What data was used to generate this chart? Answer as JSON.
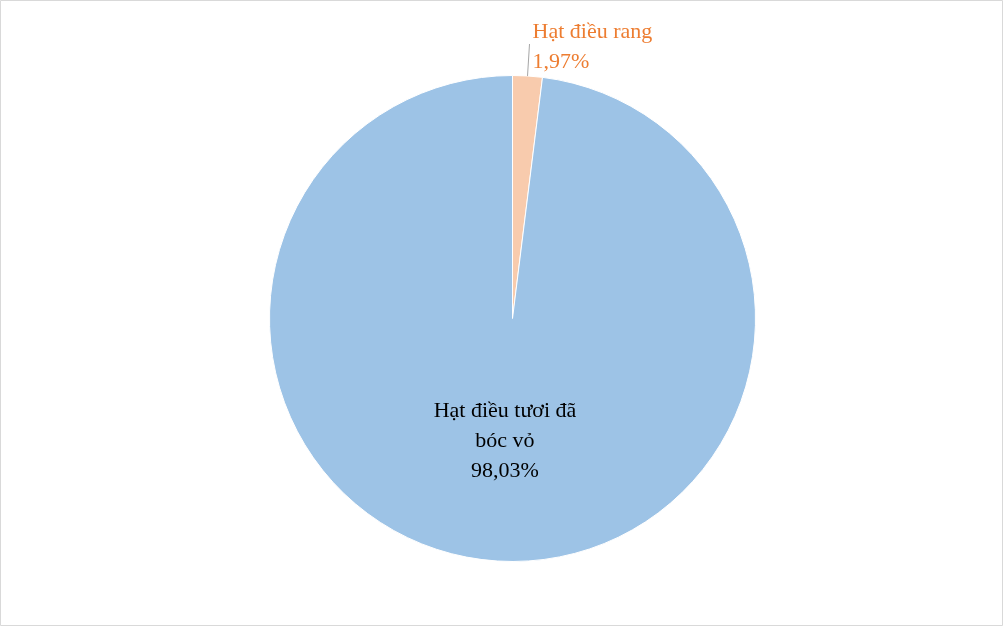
{
  "chart_data": {
    "type": "pie",
    "categories": [
      "Hạt điều rang",
      "Hạt điều tươi đã bóc vỏ"
    ],
    "values": [
      1.97,
      98.03
    ],
    "value_labels": [
      "1,97%",
      "98,03%"
    ],
    "colors": [
      "#f8cbad",
      "#9dc3e6"
    ]
  }
}
